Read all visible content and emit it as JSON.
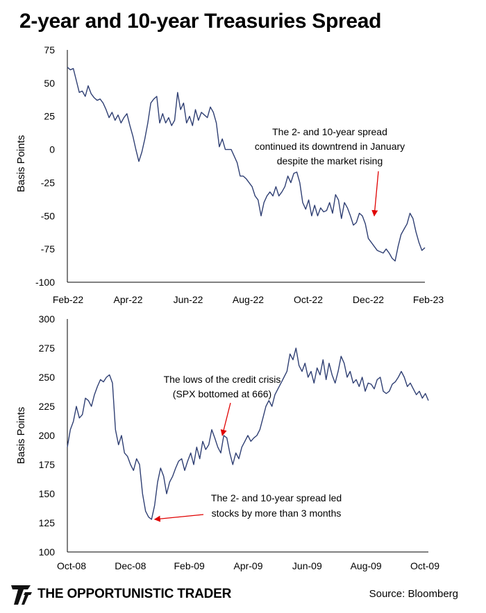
{
  "title": "2-year and 10-year Treasuries Spread",
  "footer": {
    "brand": "THE OPPORTUNISTIC TRADER",
    "source": "Source: Bloomberg",
    "logo_icon": "stylized-double-T-logo-icon"
  },
  "chart_data": [
    {
      "type": "line",
      "ylabel": "Basis Points",
      "ylim": [
        -100,
        75
      ],
      "yticks": [
        75,
        50,
        25,
        0,
        -25,
        -50,
        -75,
        -100
      ],
      "xticks": [
        "Feb-22",
        "Apr-22",
        "Jun-22",
        "Aug-22",
        "Oct-22",
        "Dec-22",
        "Feb-23"
      ],
      "xlim": [
        0,
        12
      ],
      "grid": false,
      "line_color": "#2f3f73",
      "annotation": {
        "lines": [
          "The 2- and 10-year spread",
          "continued its downtrend in January",
          "despite the market rising"
        ],
        "arrow_to": [
          10.3,
          -50
        ]
      },
      "x": [
        0,
        0.1,
        0.2,
        0.3,
        0.4,
        0.5,
        0.6,
        0.7,
        0.8,
        0.9,
        1.0,
        1.1,
        1.2,
        1.3,
        1.4,
        1.5,
        1.6,
        1.7,
        1.8,
        1.9,
        2.0,
        2.1,
        2.2,
        2.3,
        2.4,
        2.5,
        2.6,
        2.7,
        2.8,
        2.9,
        3.0,
        3.1,
        3.2,
        3.3,
        3.4,
        3.5,
        3.6,
        3.7,
        3.8,
        3.9,
        4.0,
        4.1,
        4.2,
        4.3,
        4.4,
        4.5,
        4.6,
        4.7,
        4.8,
        4.9,
        5.0,
        5.1,
        5.2,
        5.3,
        5.4,
        5.5,
        5.6,
        5.7,
        5.8,
        5.9,
        6.0,
        6.1,
        6.2,
        6.3,
        6.4,
        6.5,
        6.6,
        6.7,
        6.8,
        6.9,
        7.0,
        7.1,
        7.2,
        7.3,
        7.4,
        7.5,
        7.6,
        7.7,
        7.8,
        7.9,
        8.0,
        8.1,
        8.2,
        8.3,
        8.4,
        8.5,
        8.6,
        8.7,
        8.8,
        8.9,
        9.0,
        9.1,
        9.2,
        9.3,
        9.4,
        9.5,
        9.6,
        9.7,
        9.8,
        9.9,
        10.0,
        10.1,
        10.2,
        10.3,
        10.4,
        10.5,
        10.6,
        10.7,
        10.8,
        10.9,
        11.0,
        11.1,
        11.2,
        11.3,
        11.4,
        11.5,
        11.6,
        11.7,
        11.8,
        11.9,
        12.0
      ],
      "y": [
        62,
        60,
        61,
        52,
        43,
        44,
        40,
        48,
        42,
        39,
        37,
        38,
        35,
        30,
        24,
        28,
        22,
        26,
        20,
        24,
        27,
        18,
        10,
        0,
        -9,
        -2,
        8,
        20,
        35,
        38,
        40,
        20,
        27,
        20,
        24,
        18,
        22,
        43,
        30,
        35,
        20,
        25,
        18,
        30,
        22,
        28,
        26,
        24,
        32,
        28,
        20,
        2,
        8,
        0,
        0,
        0,
        -5,
        -10,
        -20,
        -20,
        -22,
        -25,
        -28,
        -35,
        -38,
        -50,
        -40,
        -35,
        -32,
        -35,
        -28,
        -35,
        -32,
        -28,
        -20,
        -25,
        -18,
        -17,
        -25,
        -40,
        -45,
        -38,
        -50,
        -42,
        -50,
        -44,
        -47,
        -46,
        -40,
        -48,
        -34,
        -38,
        -52,
        -40,
        -44,
        -50,
        -57,
        -55,
        -48,
        -50,
        -56,
        -67,
        -70,
        -73,
        -76,
        -77,
        -78,
        -75,
        -78,
        -82,
        -84,
        -73,
        -64,
        -60,
        -56,
        -48,
        -52,
        -62,
        -70,
        -76,
        -74
      ]
    },
    {
      "type": "line",
      "ylabel": "Basis Points",
      "ylim": [
        100,
        300
      ],
      "yticks": [
        300,
        275,
        250,
        225,
        200,
        175,
        150,
        125,
        100
      ],
      "xticks": [
        "Oct-08",
        "Dec-08",
        "Feb-09",
        "Apr-09",
        "Jun-09",
        "Aug-09",
        "Oct-09"
      ],
      "xlim": [
        0,
        12
      ],
      "grid": false,
      "line_color": "#2f3f73",
      "annotations": [
        {
          "lines": [
            "The lows of the credit crisis",
            "(SPX bottomed at 666)"
          ],
          "arrow_to": [
            5.15,
            200
          ]
        },
        {
          "lines": [
            "The 2- and 10-year spread led",
            "stocks by more than 3 months"
          ],
          "arrow_to": [
            2.9,
            128
          ]
        }
      ],
      "x": [
        0,
        0.1,
        0.2,
        0.3,
        0.4,
        0.5,
        0.6,
        0.7,
        0.8,
        0.9,
        1.0,
        1.1,
        1.2,
        1.3,
        1.4,
        1.5,
        1.6,
        1.7,
        1.8,
        1.9,
        2.0,
        2.1,
        2.2,
        2.3,
        2.4,
        2.5,
        2.6,
        2.7,
        2.8,
        2.9,
        3.0,
        3.1,
        3.2,
        3.3,
        3.4,
        3.5,
        3.6,
        3.7,
        3.8,
        3.9,
        4.0,
        4.1,
        4.2,
        4.3,
        4.4,
        4.5,
        4.6,
        4.7,
        4.8,
        4.9,
        5.0,
        5.1,
        5.2,
        5.3,
        5.4,
        5.5,
        5.6,
        5.7,
        5.8,
        5.9,
        6.0,
        6.1,
        6.2,
        6.3,
        6.4,
        6.5,
        6.6,
        6.7,
        6.8,
        6.9,
        7.0,
        7.1,
        7.2,
        7.3,
        7.4,
        7.5,
        7.6,
        7.7,
        7.8,
        7.9,
        8.0,
        8.1,
        8.2,
        8.3,
        8.4,
        8.5,
        8.6,
        8.7,
        8.8,
        8.9,
        9.0,
        9.1,
        9.2,
        9.3,
        9.4,
        9.5,
        9.6,
        9.7,
        9.8,
        9.9,
        10.0,
        10.1,
        10.2,
        10.3,
        10.4,
        10.5,
        10.6,
        10.7,
        10.8,
        10.9,
        11.0,
        11.1,
        11.2,
        11.3,
        11.4,
        11.5,
        11.6,
        11.7,
        11.8,
        11.9,
        12.0
      ],
      "y": [
        190,
        205,
        212,
        225,
        215,
        218,
        232,
        230,
        225,
        235,
        242,
        248,
        246,
        250,
        252,
        245,
        205,
        192,
        200,
        185,
        182,
        175,
        170,
        180,
        175,
        150,
        135,
        130,
        128,
        140,
        160,
        172,
        165,
        150,
        160,
        165,
        172,
        178,
        180,
        170,
        178,
        185,
        175,
        190,
        180,
        195,
        188,
        192,
        205,
        198,
        190,
        185,
        200,
        198,
        185,
        175,
        185,
        180,
        190,
        195,
        200,
        195,
        198,
        200,
        205,
        215,
        225,
        230,
        225,
        235,
        240,
        245,
        250,
        255,
        270,
        265,
        275,
        260,
        255,
        262,
        250,
        255,
        245,
        258,
        252,
        265,
        248,
        262,
        252,
        245,
        255,
        268,
        262,
        250,
        255,
        245,
        248,
        242,
        250,
        238,
        245,
        244,
        240,
        248,
        250,
        238,
        236,
        238,
        244,
        246,
        250,
        255,
        250,
        242,
        245,
        240,
        235,
        238,
        232,
        236,
        230
      ]
    }
  ]
}
